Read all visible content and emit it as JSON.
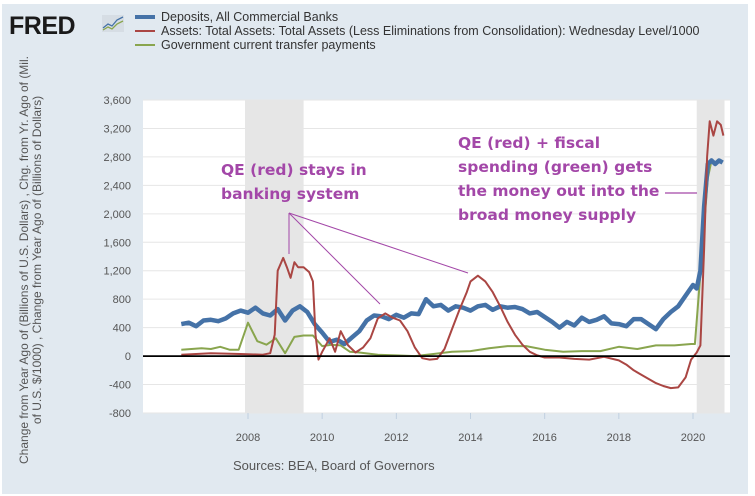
{
  "header": {
    "logo_text": "FRED",
    "logo_icon": "fred-chart-icon"
  },
  "sources": "Sources: BEA, Board of Governors",
  "annotations": [
    {
      "lines": [
        "QE (red) stays in",
        "banking system"
      ]
    },
    {
      "lines": [
        "QE (red) + fiscal",
        "spending (green) gets",
        "the money out into the",
        "broad money supply"
      ]
    }
  ],
  "colors": {
    "deposits": "#4572a7",
    "assets": "#aa4643",
    "transfers": "#89a54e",
    "annotation": "#a347a8",
    "recession": "#e6e6e6",
    "panel": "#e1e9f0",
    "zero_line": "#000000"
  },
  "chart_data": {
    "type": "line",
    "title": "",
    "xlabel": "",
    "ylabel": "Change from Year Ago of (Billions of U.S. Dollars) , Chg. from Yr. Ago of (Mil. of U.S. $/1000) , Change from Year Ago of (Billions of Dollars)",
    "xlim": [
      2006.2,
      2020.85
    ],
    "ylim": [
      -800,
      3600
    ],
    "yticks": [
      3600,
      3200,
      2800,
      2400,
      2000,
      1600,
      1200,
      800,
      400,
      0,
      -400,
      -800
    ],
    "ytick_labels": [
      "3,600",
      "3,200",
      "2,800",
      "2,400",
      "2,000",
      "1,600",
      "1,200",
      "800",
      "400",
      "0",
      "-400",
      "-800"
    ],
    "xticks": [
      2008,
      2010,
      2012,
      2014,
      2016,
      2018,
      2020
    ],
    "xtick_labels": [
      "2008",
      "2010",
      "2012",
      "2014",
      "2016",
      "2018",
      "2020"
    ],
    "grid": true,
    "legend_position": "top",
    "recessions": [
      [
        2007.92,
        2009.5
      ],
      [
        2020.1,
        2020.85
      ]
    ],
    "series": [
      {
        "name": "Deposits, All Commercial Banks",
        "color_key": "deposits",
        "x": [
          2006.2,
          2006.4,
          2006.6,
          2006.8,
          2007.0,
          2007.2,
          2007.4,
          2007.6,
          2007.8,
          2008.0,
          2008.2,
          2008.4,
          2008.6,
          2008.8,
          2009.0,
          2009.2,
          2009.4,
          2009.6,
          2009.8,
          2010.0,
          2010.2,
          2010.4,
          2010.6,
          2010.8,
          2011.0,
          2011.2,
          2011.4,
          2011.6,
          2011.8,
          2012.0,
          2012.2,
          2012.4,
          2012.6,
          2012.8,
          2013.0,
          2013.2,
          2013.4,
          2013.6,
          2013.8,
          2014.0,
          2014.2,
          2014.4,
          2014.6,
          2014.8,
          2015.0,
          2015.2,
          2015.4,
          2015.6,
          2015.8,
          2016.0,
          2016.2,
          2016.4,
          2016.6,
          2016.8,
          2017.0,
          2017.2,
          2017.4,
          2017.6,
          2017.8,
          2018.0,
          2018.2,
          2018.4,
          2018.6,
          2018.8,
          2019.0,
          2019.2,
          2019.4,
          2019.6,
          2019.8,
          2020.0,
          2020.1,
          2020.2,
          2020.3,
          2020.4,
          2020.5,
          2020.6,
          2020.7,
          2020.8
        ],
        "y": [
          450,
          470,
          420,
          500,
          510,
          490,
          530,
          600,
          640,
          610,
          680,
          600,
          570,
          660,
          500,
          640,
          700,
          620,
          450,
          330,
          200,
          230,
          170,
          260,
          350,
          500,
          570,
          560,
          520,
          580,
          540,
          600,
          590,
          800,
          700,
          720,
          640,
          700,
          680,
          640,
          700,
          720,
          650,
          700,
          680,
          690,
          660,
          600,
          620,
          550,
          480,
          400,
          480,
          430,
          540,
          480,
          510,
          560,
          460,
          450,
          420,
          520,
          520,
          450,
          380,
          520,
          620,
          700,
          850,
          1000,
          950,
          1200,
          2100,
          2700,
          2750,
          2700,
          2750,
          2720
        ]
      },
      {
        "name": "Assets: Total Assets: Total Assets (Less Eliminations from Consolidation): Wednesday Level/1000",
        "color_key": "assets",
        "x": [
          2006.2,
          2007.0,
          2007.8,
          2008.4,
          2008.6,
          2008.72,
          2008.8,
          2008.95,
          2009.05,
          2009.15,
          2009.25,
          2009.35,
          2009.5,
          2009.65,
          2009.75,
          2009.82,
          2009.9,
          2010.0,
          2010.2,
          2010.35,
          2010.5,
          2010.7,
          2010.9,
          2011.1,
          2011.3,
          2011.5,
          2011.7,
          2011.9,
          2012.1,
          2012.3,
          2012.5,
          2012.7,
          2012.9,
          2013.1,
          2013.3,
          2013.5,
          2013.7,
          2013.9,
          2014.0,
          2014.2,
          2014.4,
          2014.6,
          2014.8,
          2015.0,
          2015.2,
          2015.4,
          2015.6,
          2015.8,
          2016.0,
          2016.4,
          2016.8,
          2017.2,
          2017.6,
          2018.0,
          2018.2,
          2018.4,
          2018.6,
          2018.8,
          2019.0,
          2019.2,
          2019.4,
          2019.6,
          2019.8,
          2019.95,
          2020.1,
          2020.2,
          2020.3,
          2020.38,
          2020.45,
          2020.55,
          2020.65,
          2020.75,
          2020.82
        ],
        "y": [
          20,
          40,
          30,
          20,
          40,
          300,
          1200,
          1380,
          1250,
          1100,
          1320,
          1250,
          1250,
          1180,
          1050,
          300,
          -50,
          60,
          250,
          60,
          350,
          150,
          50,
          120,
          250,
          530,
          600,
          540,
          500,
          350,
          120,
          -30,
          -50,
          -40,
          100,
          380,
          650,
          900,
          1050,
          1130,
          1050,
          900,
          700,
          480,
          300,
          160,
          60,
          10,
          -20,
          -20,
          -40,
          -50,
          -10,
          -60,
          -120,
          -200,
          -260,
          -320,
          -380,
          -420,
          -450,
          -440,
          -300,
          -50,
          50,
          150,
          1500,
          2800,
          3300,
          3100,
          3300,
          3250,
          3100
        ]
      },
      {
        "name": "Government current transfer payments",
        "color_key": "transfers",
        "x": [
          2006.2,
          2006.75,
          2007.0,
          2007.25,
          2007.5,
          2007.75,
          2008.0,
          2008.25,
          2008.5,
          2008.75,
          2009.0,
          2009.25,
          2009.5,
          2009.75,
          2010.0,
          2010.25,
          2010.5,
          2010.75,
          2011.0,
          2011.5,
          2012.0,
          2012.5,
          2013.0,
          2013.5,
          2014.0,
          2014.5,
          2015.0,
          2015.5,
          2016.0,
          2016.5,
          2017.0,
          2017.5,
          2018.0,
          2018.5,
          2019.0,
          2019.5,
          2019.95,
          2020.05,
          2020.25,
          2020.4,
          2020.5
        ],
        "y": [
          90,
          110,
          100,
          130,
          90,
          90,
          470,
          210,
          160,
          250,
          40,
          270,
          290,
          290,
          140,
          160,
          150,
          60,
          50,
          20,
          10,
          0,
          30,
          60,
          70,
          110,
          140,
          140,
          90,
          60,
          70,
          70,
          130,
          100,
          150,
          150,
          170,
          170,
          1500,
          2500,
          2750
        ]
      }
    ]
  }
}
